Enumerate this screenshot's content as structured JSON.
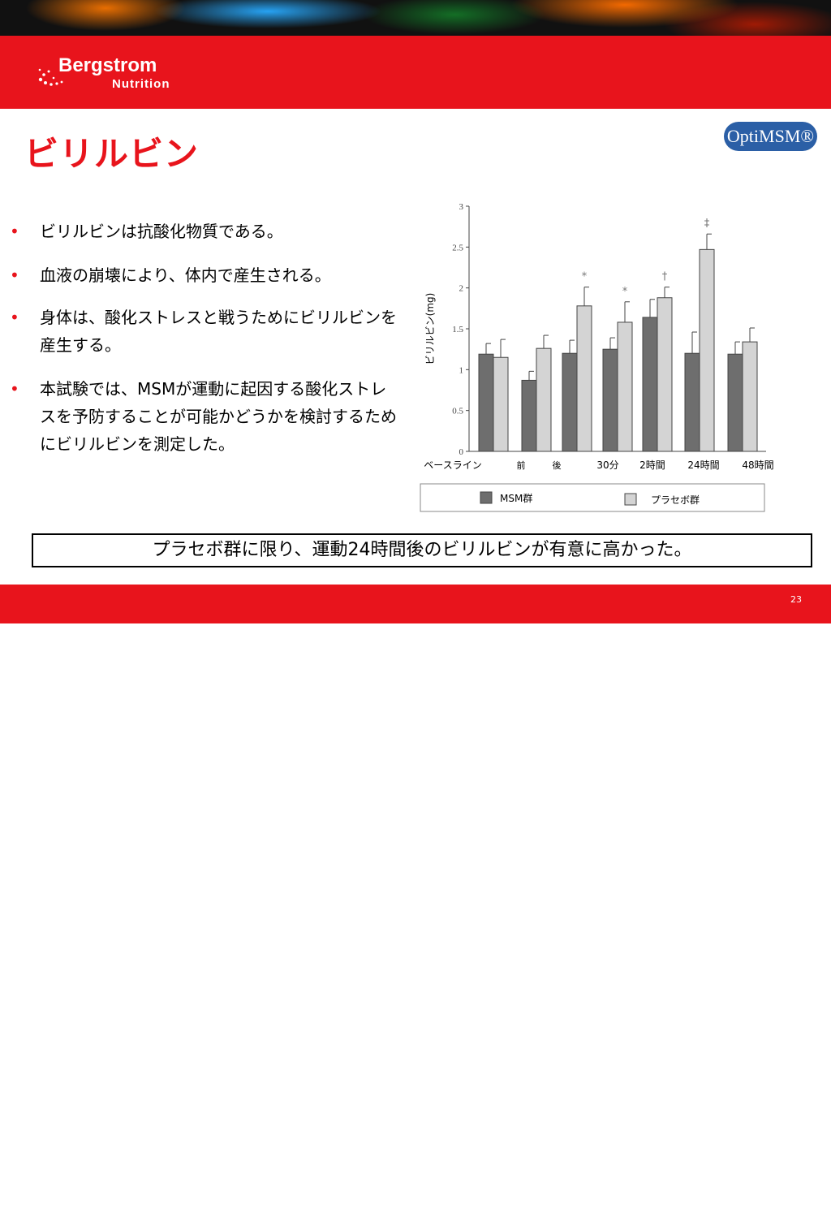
{
  "brand": {
    "name_line1": "Bergstrom",
    "name_line2": "Nutrition"
  },
  "title": "ビリルビン",
  "badge": "OptiMSM®",
  "bullets": [
    {
      "marker": "•",
      "text": "ビリルビンは抗酸化物質である。"
    },
    {
      "marker": "•",
      "text": "血液の崩壊により、体内で産生される。"
    },
    {
      "marker": "•",
      "text": "身体は、酸化ストレスと戦うためにビリルビンを産生する。"
    },
    {
      "marker": "•",
      "text": "本試験では、MSMが運動に起因する酸化ストレスを予防することが可能かどうかを検討するためにビリルビンを測定した。"
    }
  ],
  "conclusion": "プラセボ群に限り、運動24時間後のビリルビンが有意に高かった。",
  "page_number": "23",
  "colors": {
    "accent_red": "#e8141c",
    "msm_bar": "#6e6e6e",
    "placebo_bar": "#d4d4d4"
  },
  "chart_data": {
    "type": "bar",
    "ylabel": "ビリルビン(mg)",
    "ylim": [
      0,
      3
    ],
    "yticks": [
      "0",
      "0.5",
      "1",
      "1.5",
      "2",
      "2.5",
      "3"
    ],
    "categories": [
      "ベースライン",
      "前",
      "後",
      "30分",
      "2時間",
      "24時間",
      "48時間"
    ],
    "series": [
      {
        "name": "MSM群",
        "values": [
          1.19,
          0.87,
          1.2,
          1.25,
          1.64,
          1.2,
          1.19
        ],
        "errors": [
          0.13,
          0.11,
          0.16,
          0.14,
          0.22,
          0.26,
          0.15
        ]
      },
      {
        "name": "プラセボ群",
        "values": [
          1.15,
          1.26,
          1.78,
          1.58,
          1.88,
          2.47,
          1.34
        ],
        "errors": [
          0.22,
          0.16,
          0.23,
          0.25,
          0.13,
          0.19,
          0.17
        ]
      }
    ],
    "annotations": [
      {
        "category": "後",
        "series": "プラセボ群",
        "text": "*"
      },
      {
        "category": "30分",
        "series": "プラセボ群",
        "text": "*"
      },
      {
        "category": "2時間",
        "series": "プラセボ群",
        "text": "†"
      },
      {
        "category": "24時間",
        "series": "プラセボ群",
        "text": "‡"
      }
    ],
    "legend_position": "bottom"
  }
}
